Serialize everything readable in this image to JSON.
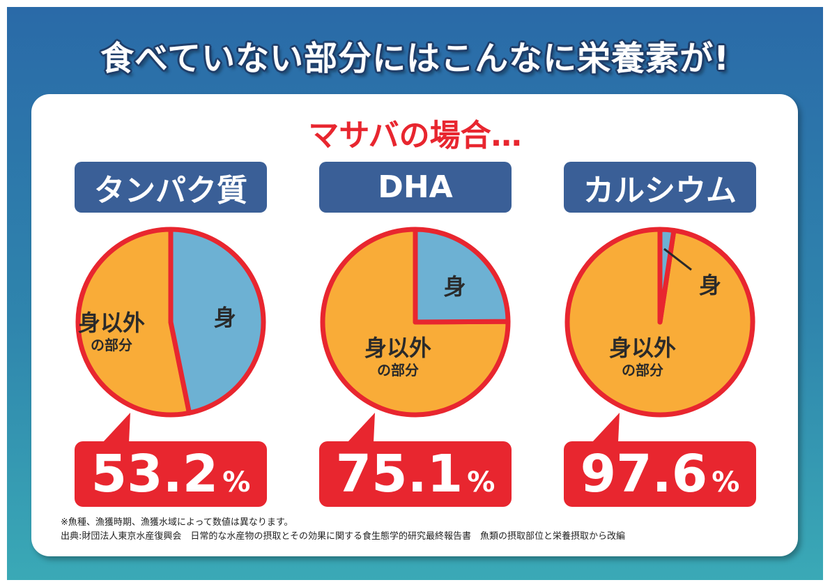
{
  "title": "食べていない部分にはこんなに栄養素が!",
  "subtitle": "マサバの場合…",
  "colors": {
    "other": "#f9ac38",
    "flesh": "#6db1d3",
    "outline": "#e8262f",
    "label_bg": "#3a5f97"
  },
  "chart_data": [
    {
      "type": "pie",
      "title": "タンパク質",
      "slices": [
        {
          "label": "身",
          "value": 46.8
        },
        {
          "label": "身以外",
          "sublabel": "の部分",
          "value": 53.2
        }
      ],
      "callout": "53.2",
      "unit": "%"
    },
    {
      "type": "pie",
      "title": "DHA",
      "slices": [
        {
          "label": "身",
          "value": 24.9
        },
        {
          "label": "身以外",
          "sublabel": "の部分",
          "value": 75.1
        }
      ],
      "callout": "75.1",
      "unit": "%"
    },
    {
      "type": "pie",
      "title": "カルシウム",
      "slices": [
        {
          "label": "身",
          "value": 2.4
        },
        {
          "label": "身以外",
          "sublabel": "の部分",
          "value": 97.6
        }
      ],
      "callout": "97.6",
      "unit": "%"
    }
  ],
  "notes": [
    "※魚種、漁獲時期、漁獲水域によって数値は異なります。",
    "出典:財団法人東京水産復興会　日常的な水産物の摂取とその効果に関する食生態学的研究最終報告書　魚類の摂取部位と栄養摂取から改編"
  ]
}
